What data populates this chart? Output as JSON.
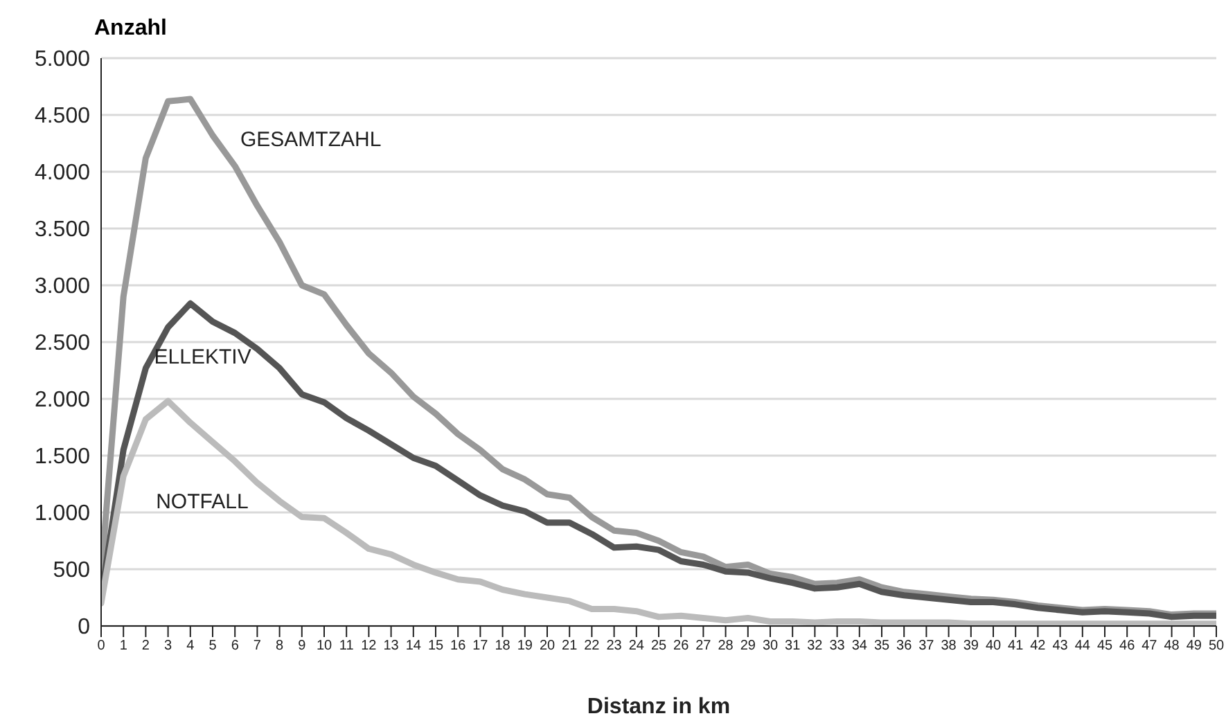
{
  "chart_data": {
    "type": "line",
    "ylabel": "Anzahl",
    "xlabel": "Distanz in km",
    "x": [
      0,
      1,
      2,
      3,
      4,
      5,
      6,
      7,
      8,
      9,
      10,
      11,
      12,
      13,
      14,
      15,
      16,
      17,
      18,
      19,
      20,
      21,
      22,
      23,
      24,
      25,
      26,
      27,
      28,
      29,
      30,
      31,
      32,
      33,
      34,
      35,
      36,
      37,
      38,
      39,
      40,
      41,
      42,
      43,
      44,
      45,
      46,
      47,
      48,
      49,
      50
    ],
    "series": [
      {
        "name": "GESAMTZAHL",
        "color": "#999999",
        "values": [
          450,
          2900,
          4120,
          4620,
          4640,
          4320,
          4050,
          3700,
          3380,
          3000,
          2920,
          2650,
          2400,
          2230,
          2020,
          1870,
          1690,
          1550,
          1380,
          1290,
          1160,
          1130,
          960,
          840,
          820,
          750,
          650,
          610,
          520,
          540,
          460,
          430,
          370,
          380,
          410,
          340,
          300,
          280,
          260,
          240,
          230,
          210,
          180,
          160,
          140,
          150,
          140,
          130,
          100,
          110,
          110
        ]
      },
      {
        "name": "ELLEKTIV",
        "color": "#555555",
        "values": [
          250,
          1550,
          2270,
          2630,
          2840,
          2680,
          2580,
          2440,
          2270,
          2040,
          1970,
          1830,
          1720,
          1600,
          1480,
          1410,
          1280,
          1150,
          1060,
          1010,
          910,
          910,
          810,
          690,
          700,
          670,
          570,
          540,
          480,
          470,
          420,
          380,
          330,
          340,
          370,
          300,
          270,
          250,
          230,
          210,
          210,
          190,
          160,
          140,
          120,
          130,
          120,
          110,
          80,
          90,
          90
        ]
      },
      {
        "name": "NOTFALL",
        "color": "#bbbbbb",
        "values": [
          200,
          1320,
          1820,
          1980,
          1790,
          1620,
          1450,
          1260,
          1100,
          960,
          950,
          820,
          680,
          630,
          540,
          470,
          410,
          390,
          320,
          280,
          250,
          220,
          150,
          150,
          130,
          80,
          90,
          70,
          50,
          70,
          40,
          40,
          30,
          40,
          40,
          30,
          30,
          30,
          30,
          20,
          20,
          20,
          20,
          20,
          20,
          20,
          20,
          20,
          20,
          20,
          20
        ]
      }
    ],
    "xlim": [
      0,
      50
    ],
    "xticks": [
      0,
      1,
      2,
      3,
      4,
      5,
      6,
      7,
      8,
      9,
      10,
      11,
      12,
      13,
      14,
      15,
      16,
      17,
      18,
      19,
      20,
      21,
      22,
      23,
      24,
      25,
      26,
      27,
      28,
      29,
      30,
      31,
      32,
      33,
      34,
      35,
      36,
      37,
      38,
      39,
      40,
      41,
      42,
      43,
      44,
      45,
      46,
      47,
      48,
      49,
      50
    ],
    "ylim": [
      0,
      5000
    ],
    "yticks": [
      0,
      {
        "value": 500,
        "label": "500"
      },
      {
        "value": 1000,
        "label": "1.000"
      },
      {
        "value": 1500,
        "label": "1.500"
      },
      {
        "value": 2000,
        "label": "2.000"
      },
      {
        "value": 2500,
        "label": "2.500"
      },
      {
        "value": 3000,
        "label": "3.000"
      },
      {
        "value": 3500,
        "label": "3.500"
      },
      {
        "value": 4000,
        "label": "4.000"
      },
      {
        "value": 4500,
        "label": "4.500"
      },
      {
        "value": 5000,
        "label": "5.000"
      }
    ],
    "grid": "y",
    "legend": false,
    "marker": "none",
    "line_style": "solid"
  }
}
